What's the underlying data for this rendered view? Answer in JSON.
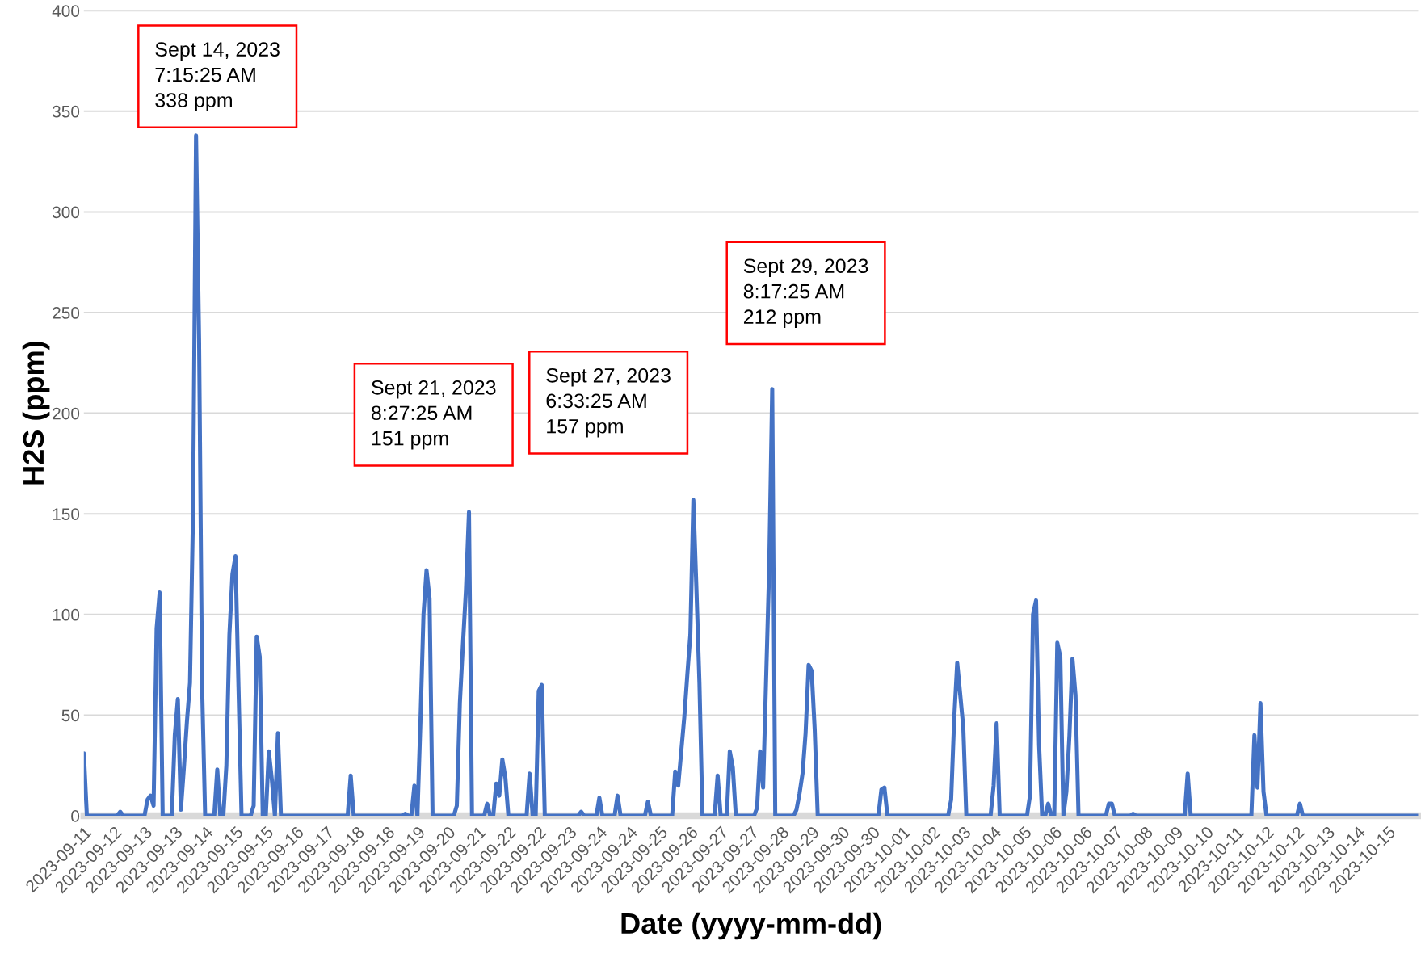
{
  "chart_data": {
    "type": "line",
    "xlabel": "Date (yyyy-mm-dd)",
    "ylabel": "H2S (ppm)",
    "categories": [
      "2023-09-11",
      null,
      null,
      null,
      null,
      null,
      null,
      null,
      null,
      null,
      "2023-09-12",
      null,
      null,
      null,
      null,
      null,
      null,
      null,
      null,
      null,
      "2023-09-13",
      null,
      null,
      null,
      null,
      null,
      null,
      null,
      null,
      null,
      "2023-09-13",
      null,
      null,
      null,
      null,
      null,
      null,
      null,
      null,
      null,
      "2023-09-14",
      null,
      null,
      null,
      null,
      null,
      null,
      null,
      null,
      null,
      "2023-09-15",
      null,
      null,
      null,
      null,
      null,
      null,
      null,
      null,
      null,
      "2023-09-15",
      null,
      null,
      null,
      null,
      null,
      null,
      null,
      null,
      null,
      "2023-09-16",
      null,
      null,
      null,
      null,
      null,
      null,
      null,
      null,
      null,
      "2023-09-17",
      null,
      null,
      null,
      null,
      null,
      null,
      null,
      null,
      null,
      "2023-09-18",
      null,
      null,
      null,
      null,
      null,
      null,
      null,
      null,
      null,
      "2023-09-18",
      null,
      null,
      null,
      null,
      null,
      null,
      null,
      null,
      null,
      "2023-09-19",
      null,
      null,
      null,
      null,
      null,
      null,
      null,
      null,
      null,
      "2023-09-20",
      null,
      null,
      null,
      null,
      null,
      null,
      null,
      null,
      null,
      "2023-09-21",
      null,
      null,
      null,
      null,
      null,
      null,
      null,
      null,
      null,
      "2023-09-22",
      null,
      null,
      null,
      null,
      null,
      null,
      null,
      null,
      null,
      "2023-09-22",
      null,
      null,
      null,
      null,
      null,
      null,
      null,
      null,
      null,
      "2023-09-23",
      null,
      null,
      null,
      null,
      null,
      null,
      null,
      null,
      null,
      "2023-09-24",
      null,
      null,
      null,
      null,
      null,
      null,
      null,
      null,
      null,
      "2023-09-24",
      null,
      null,
      null,
      null,
      null,
      null,
      null,
      null,
      null,
      "2023-09-25",
      null,
      null,
      null,
      null,
      null,
      null,
      null,
      null,
      null,
      "2023-09-26",
      null,
      null,
      null,
      null,
      null,
      null,
      null,
      null,
      null,
      "2023-09-27",
      null,
      null,
      null,
      null,
      null,
      null,
      null,
      null,
      null,
      "2023-09-27",
      null,
      null,
      null,
      null,
      null,
      null,
      null,
      null,
      null,
      "2023-09-28",
      null,
      null,
      null,
      null,
      null,
      null,
      null,
      null,
      null,
      "2023-09-29",
      null,
      null,
      null,
      null,
      null,
      null,
      null,
      null,
      null,
      "2023-09-30",
      null,
      null,
      null,
      null,
      null,
      null,
      null,
      null,
      null,
      "2023-09-30",
      null,
      null,
      null,
      null,
      null,
      null,
      null,
      null,
      null,
      "2023-10-01",
      null,
      null,
      null,
      null,
      null,
      null,
      null,
      null,
      null,
      "2023-10-02",
      null,
      null,
      null,
      null,
      null,
      null,
      null,
      null,
      null,
      "2023-10-03",
      null,
      null,
      null,
      null,
      null,
      null,
      null,
      null,
      null,
      "2023-10-04",
      null,
      null,
      null,
      null,
      null,
      null,
      null,
      null,
      null,
      "2023-10-05",
      null,
      null,
      null,
      null,
      null,
      null,
      null,
      null,
      null,
      "2023-10-06",
      null,
      null,
      null,
      null,
      null,
      null,
      null,
      null,
      null,
      "2023-10-06",
      null,
      null,
      null,
      null,
      null,
      null,
      null,
      null,
      null,
      "2023-10-07",
      null,
      null,
      null,
      null,
      null,
      null,
      null,
      null,
      null,
      "2023-10-08",
      null,
      null,
      null,
      null,
      null,
      null,
      null,
      null,
      null,
      "2023-10-09",
      null,
      null,
      null,
      null,
      null,
      null,
      null,
      null,
      null,
      "2023-10-10",
      null,
      null,
      null,
      null,
      null,
      null,
      null,
      null,
      null,
      "2023-10-11",
      null,
      null,
      null,
      null,
      null,
      null,
      null,
      null,
      null,
      "2023-10-12",
      null,
      null,
      null,
      null,
      null,
      null,
      null,
      null,
      null,
      "2023-10-12",
      null,
      null,
      null,
      null,
      null,
      null,
      null,
      null,
      null,
      "2023-10-13",
      null,
      null,
      null,
      null,
      null,
      null,
      null,
      null,
      null,
      "2023-10-14",
      null,
      null,
      null,
      null,
      null,
      null,
      null,
      null,
      null,
      "2023-10-15",
      null,
      null,
      null,
      null,
      null,
      null,
      null,
      null,
      null,
      null
    ],
    "series": [
      {
        "color": "#4472c4",
        "values": [
          31,
          0,
          0,
          0,
          0,
          0,
          0,
          0,
          0,
          0,
          0,
          0,
          2,
          0,
          0,
          0,
          0,
          0,
          0,
          0,
          0,
          8,
          10,
          5,
          93,
          111,
          0,
          0,
          0,
          0,
          40,
          58,
          3,
          24,
          47,
          66,
          150,
          338,
          237,
          64,
          0,
          0,
          0,
          0,
          23,
          0,
          0,
          25,
          90,
          120,
          129,
          64,
          0,
          0,
          0,
          0,
          5,
          89,
          79,
          0,
          0,
          32,
          18,
          0,
          41,
          0,
          0,
          0,
          0,
          0,
          0,
          0,
          0,
          0,
          0,
          0,
          0,
          0,
          0,
          0,
          0,
          0,
          0,
          0,
          0,
          0,
          0,
          0,
          20,
          0,
          0,
          0,
          0,
          0,
          0,
          0,
          0,
          0,
          0,
          0,
          0,
          0,
          0,
          0,
          0,
          0,
          1,
          0,
          0,
          15,
          0,
          47,
          100,
          122,
          108,
          0,
          0,
          0,
          0,
          0,
          0,
          0,
          0,
          5,
          56,
          85,
          112,
          151,
          0,
          0,
          0,
          0,
          0,
          6,
          0,
          0,
          16,
          10,
          28,
          19,
          0,
          0,
          0,
          0,
          0,
          0,
          0,
          21,
          0,
          0,
          62,
          65,
          0,
          0,
          0,
          0,
          0,
          0,
          0,
          0,
          0,
          0,
          0,
          0,
          2,
          0,
          0,
          0,
          0,
          0,
          9,
          0,
          0,
          0,
          0,
          0,
          10,
          0,
          0,
          0,
          0,
          0,
          0,
          0,
          0,
          0,
          7,
          0,
          0,
          0,
          0,
          0,
          0,
          0,
          0,
          22,
          15,
          32,
          49,
          70,
          90,
          157,
          113,
          66,
          0,
          0,
          0,
          0,
          0,
          20,
          0,
          0,
          0,
          32,
          24,
          0,
          0,
          0,
          0,
          0,
          0,
          0,
          4,
          32,
          14,
          69,
          123,
          212,
          0,
          0,
          0,
          0,
          0,
          0,
          0,
          3,
          11,
          21,
          41,
          75,
          72,
          43,
          0,
          0,
          0,
          0,
          0,
          0,
          0,
          0,
          0,
          0,
          0,
          0,
          0,
          0,
          0,
          0,
          0,
          0,
          0,
          0,
          0,
          13,
          14,
          0,
          0,
          0,
          0,
          0,
          0,
          0,
          0,
          0,
          0,
          0,
          0,
          0,
          0,
          0,
          0,
          0,
          0,
          0,
          0,
          0,
          8,
          48,
          76,
          60,
          44,
          0,
          0,
          0,
          0,
          0,
          0,
          0,
          0,
          0,
          15,
          46,
          0,
          0,
          0,
          0,
          0,
          0,
          0,
          0,
          0,
          0,
          10,
          100,
          107,
          35,
          0,
          0,
          6,
          0,
          0,
          86,
          79,
          0,
          12,
          40,
          78,
          60,
          0,
          0,
          0,
          0,
          0,
          0,
          0,
          0,
          0,
          0,
          6,
          6,
          0,
          0,
          0,
          0,
          0,
          0,
          1,
          0,
          0,
          0,
          0,
          0,
          0,
          0,
          0,
          0,
          0,
          0,
          0,
          0,
          0,
          0,
          0,
          0,
          21,
          0,
          0,
          0,
          0,
          0,
          0,
          0,
          0,
          0,
          0,
          0,
          0,
          0,
          0,
          0,
          0,
          0,
          0,
          0,
          0,
          0,
          40,
          14,
          56,
          12,
          0,
          0,
          0,
          0,
          0,
          0,
          0,
          0,
          0,
          0,
          0,
          6,
          0,
          0,
          0,
          0,
          0,
          0,
          0,
          0,
          0,
          0,
          0,
          0,
          0,
          0,
          0,
          0,
          0,
          0,
          0,
          0,
          0,
          0,
          0,
          0,
          0,
          0,
          0,
          0,
          0,
          0,
          0,
          0,
          0,
          0,
          0,
          0,
          0,
          0,
          0
        ]
      }
    ],
    "ylim": [
      0,
      400
    ],
    "yticks": [
      0,
      50,
      100,
      150,
      200,
      250,
      300,
      350,
      400
    ],
    "grid": "y",
    "marker": "none",
    "line_style": "solid",
    "annotations": [
      "Sept 14, 2023\n7:15:25 AM\n338 ppm",
      "Sept 21, 2023\n8:27:25 AM\n151 ppm",
      "Sept 27, 2023\n6:33:25 AM\n157 ppm",
      "Sept 29, 2023\n8:17:25 AM\n212 ppm"
    ]
  }
}
